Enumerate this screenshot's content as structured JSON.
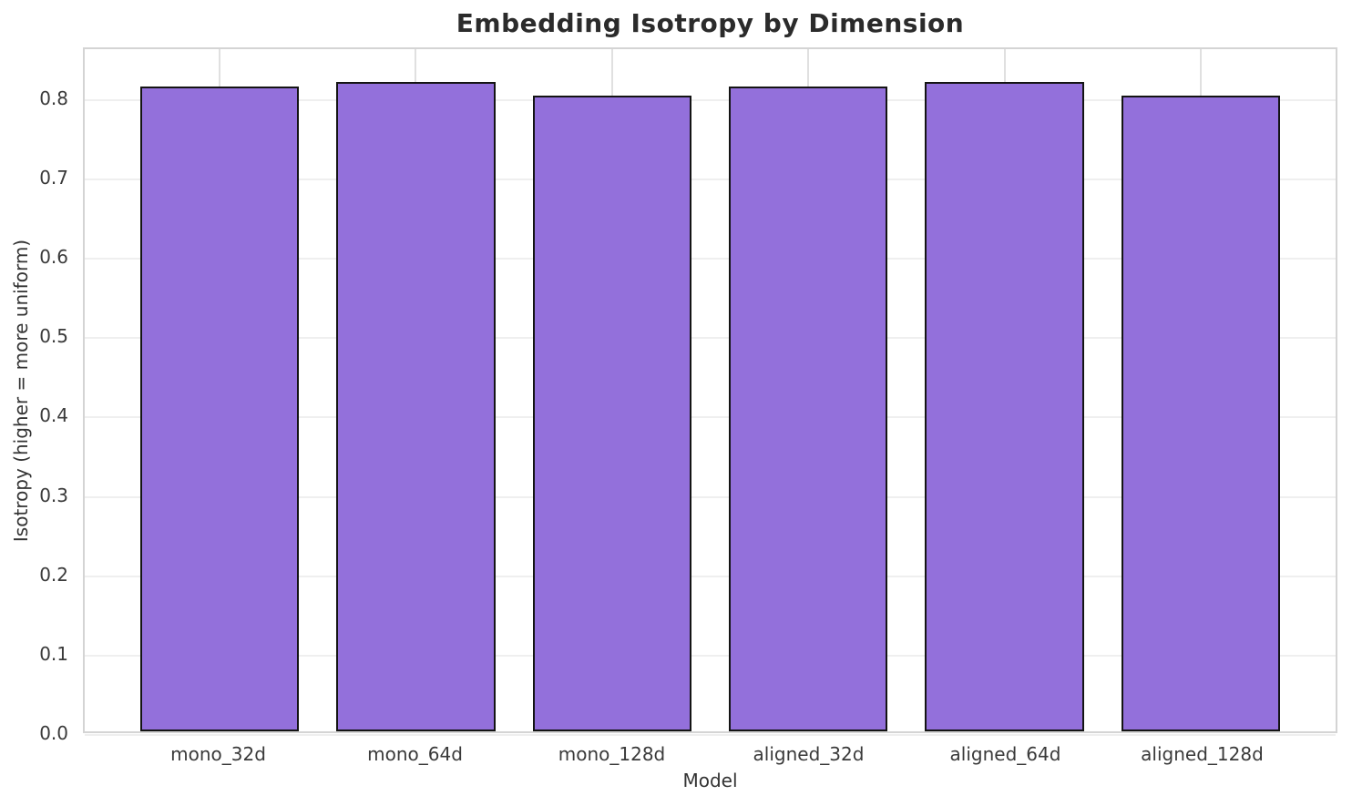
{
  "chart_data": {
    "type": "bar",
    "title": "Embedding Isotropy by Dimension",
    "xlabel": "Model",
    "ylabel": "Isotropy (higher = more uniform)",
    "categories": [
      "mono_32d",
      "mono_64d",
      "mono_128d",
      "aligned_32d",
      "aligned_64d",
      "aligned_128d"
    ],
    "values": [
      0.817,
      0.822,
      0.805,
      0.817,
      0.823,
      0.805
    ],
    "ylim": [
      0,
      0.864
    ],
    "yticks": [
      0.0,
      0.1,
      0.2,
      0.3,
      0.4,
      0.5,
      0.6,
      0.7,
      0.8
    ],
    "ytick_labels": [
      "0.0",
      "0.1",
      "0.2",
      "0.3",
      "0.4",
      "0.5",
      "0.6",
      "0.7",
      "0.8"
    ],
    "grid": true,
    "legend": null,
    "bar_fill_color": "#9370DB",
    "bar_edge_color": "#141414",
    "grid_color": "#efefef",
    "spine_color": "#d4d4d4",
    "title_color": "#2b2b2b",
    "tick_label_color": "#3a3a3a"
  }
}
